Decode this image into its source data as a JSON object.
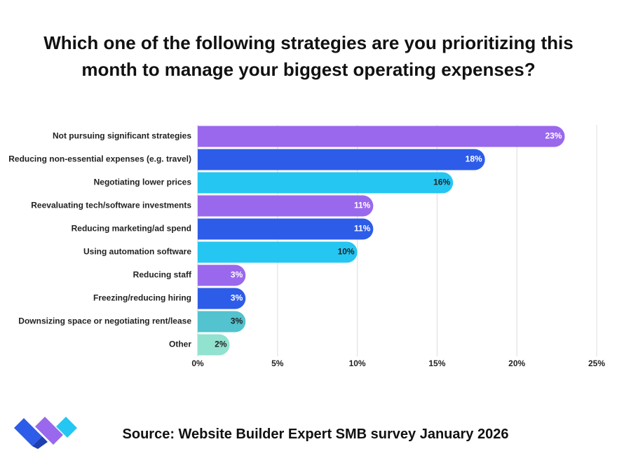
{
  "chart_data": {
    "type": "barh",
    "title": "Which one of the following strategies are you prioritizing this month to manage your biggest operating expenses?",
    "categories": [
      "Not pursuing significant strategies",
      "Reducing non-essential expenses (e.g. travel)",
      "Negotiating lower prices",
      "Reevaluating tech/software investments",
      "Reducing marketing/ad spend",
      "Using automation software",
      "Reducing staff",
      "Freezing/reducing hiring",
      "Downsizing space or negotiating rent/lease",
      "Other"
    ],
    "values": [
      23,
      18,
      16,
      11,
      11,
      10,
      3,
      3,
      3,
      2
    ],
    "value_labels": [
      "23%",
      "18%",
      "16%",
      "11%",
      "11%",
      "10%",
      "3%",
      "3%",
      "3%",
      "2%"
    ],
    "colors": [
      "#9a68ec",
      "#2d5ce8",
      "#25c6f2",
      "#9a68ec",
      "#2d5ce8",
      "#25c6f2",
      "#9a68ec",
      "#2d5ce8",
      "#52c3cf",
      "#92e2d0"
    ],
    "xlim": [
      0,
      25
    ],
    "xticks": [
      {
        "value": 0,
        "label": "0%"
      },
      {
        "value": 5,
        "label": "5%"
      },
      {
        "value": 10,
        "label": "10%"
      },
      {
        "value": 15,
        "label": "15%"
      },
      {
        "value": 20,
        "label": "20%"
      },
      {
        "value": 25,
        "label": "25%"
      }
    ],
    "grid": true,
    "source": "Source: Website Builder Expert SMB survey January 2026"
  }
}
